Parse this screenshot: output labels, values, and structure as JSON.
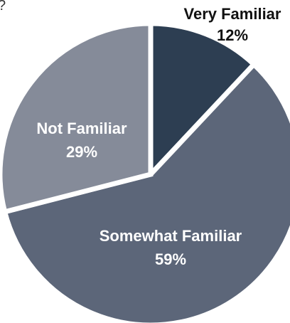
{
  "chart_data": {
    "type": "pie",
    "title": "",
    "categories": [
      "Very Familiar",
      "Somewhat Familiar",
      "Not Familiar"
    ],
    "values": [
      12,
      59,
      29
    ],
    "value_labels": [
      "12%",
      "59%",
      "29%"
    ],
    "colors": [
      "#2d3e52",
      "#5c6679",
      "#858b99"
    ],
    "label_colors": [
      "#111111",
      "#ffffff",
      "#ffffff"
    ],
    "start": "12 o'clock",
    "direction": "clockwise",
    "legend": "none"
  }
}
